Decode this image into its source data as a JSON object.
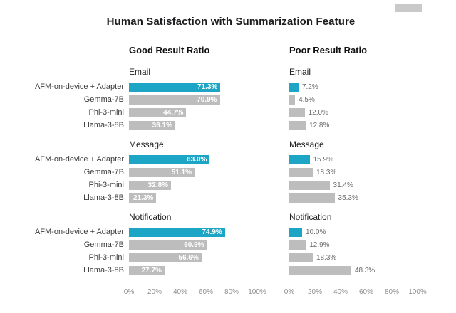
{
  "colors": {
    "accent": "#1CA5C4",
    "gray": "#BDBDBD"
  },
  "chart_data": {
    "type": "bar",
    "orientation": "horizontal",
    "title": "Human Satisfaction with Summarization Feature",
    "categories": [
      "AFM-on-device + Adapter",
      "Gemma-7B",
      "Phi-3-mini",
      "Llama-3-8B"
    ],
    "xlim": [
      0,
      100
    ],
    "tick_labels": [
      "0%",
      "20%",
      "40%",
      "60%",
      "80%",
      "100%"
    ],
    "legend_position": "none",
    "grid": false,
    "panels": [
      {
        "title": "Good Result Ratio",
        "groups": [
          {
            "name": "Email",
            "values": [
              71.3,
              70.9,
              44.7,
              36.1
            ],
            "labels": [
              "71.3%",
              "70.9%",
              "44.7%",
              "36.1%"
            ]
          },
          {
            "name": "Message",
            "values": [
              63.0,
              51.1,
              32.8,
              21.3
            ],
            "labels": [
              "63.0%",
              "51.1%",
              "32.8%",
              "21.3%"
            ]
          },
          {
            "name": "Notification",
            "values": [
              74.9,
              60.9,
              56.6,
              27.7
            ],
            "labels": [
              "74.9%",
              "60.9%",
              "56.6%",
              "27.7%"
            ]
          }
        ]
      },
      {
        "title": "Poor Result Ratio",
        "groups": [
          {
            "name": "Email",
            "values": [
              7.2,
              4.5,
              12.0,
              12.8
            ],
            "labels": [
              "7.2%",
              "4.5%",
              "12.0%",
              "12.8%"
            ]
          },
          {
            "name": "Message",
            "values": [
              15.9,
              18.3,
              31.4,
              35.3
            ],
            "labels": [
              "15.9%",
              "18.3%",
              "31.4%",
              "35.3%"
            ]
          },
          {
            "name": "Notification",
            "values": [
              10.0,
              12.9,
              18.3,
              48.3
            ],
            "labels": [
              "10.0%",
              "12.9%",
              "18.3%",
              "48.3%"
            ]
          }
        ]
      }
    ]
  }
}
